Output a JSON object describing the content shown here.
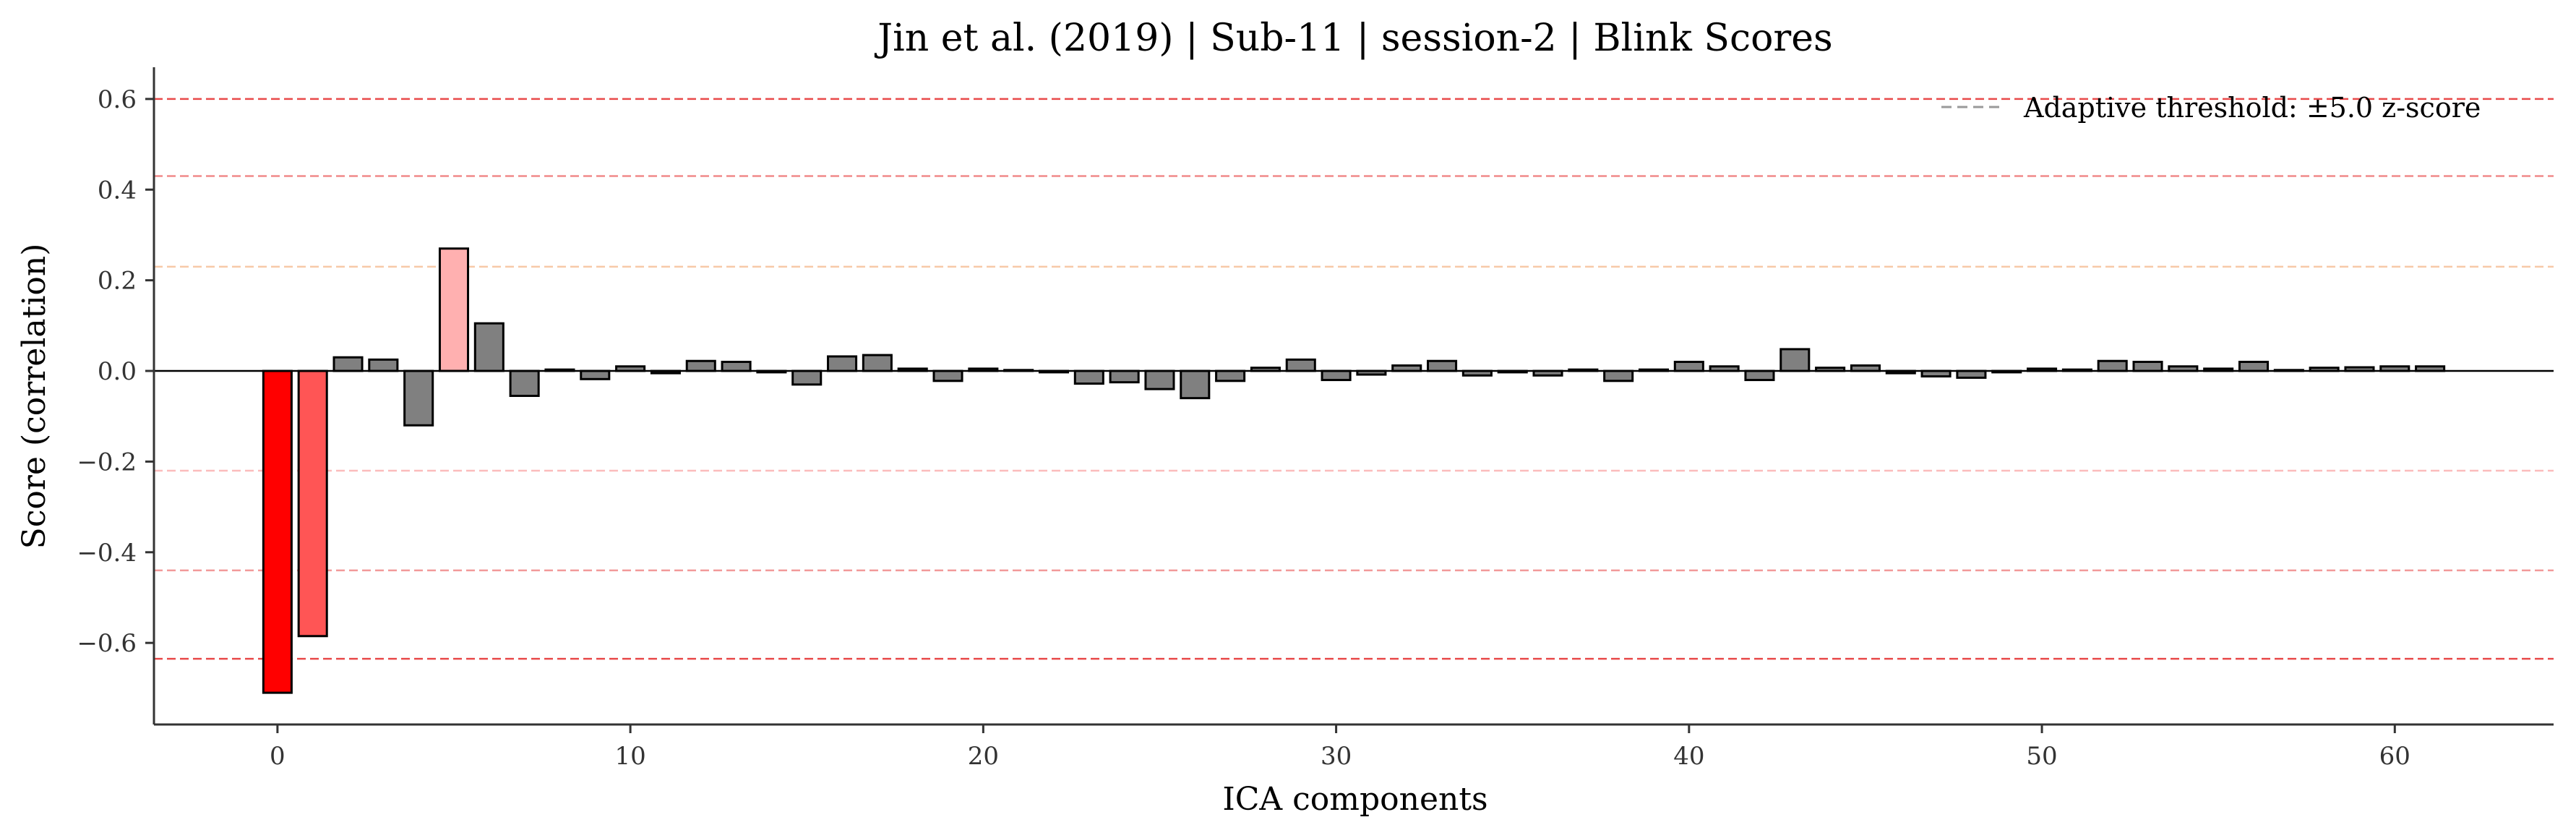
{
  "chart_data": {
    "type": "bar",
    "title": "Jin et al. (2019) | Sub-11 | session-2 | Blink Scores",
    "xlabel": "ICA components",
    "ylabel": "Score (correlation)",
    "xlim": [
      -3.5,
      64.5
    ],
    "ylim": [
      -0.78,
      0.67
    ],
    "xticks": [
      0,
      10,
      20,
      30,
      40,
      50,
      60
    ],
    "yticks": [
      -0.6,
      -0.4,
      -0.2,
      0.0,
      0.2,
      0.4,
      0.6
    ],
    "ytick_labels": [
      "−0.6",
      "−0.4",
      "−0.2",
      "0.0",
      "0.2",
      "0.4",
      "0.6"
    ],
    "xtick_labels": [
      "0",
      "10",
      "20",
      "30",
      "40",
      "50",
      "60"
    ],
    "x": [
      0,
      1,
      2,
      3,
      4,
      5,
      6,
      7,
      8,
      9,
      10,
      11,
      12,
      13,
      14,
      15,
      16,
      17,
      18,
      19,
      20,
      21,
      22,
      23,
      24,
      25,
      26,
      27,
      28,
      29,
      30,
      31,
      32,
      33,
      34,
      35,
      36,
      37,
      38,
      39,
      40,
      41,
      42,
      43,
      44,
      45,
      46,
      47,
      48,
      49,
      50,
      51,
      52,
      53,
      54,
      55,
      56,
      57,
      58,
      59,
      60,
      61
    ],
    "values": [
      -0.71,
      -0.585,
      0.03,
      0.025,
      -0.12,
      0.27,
      0.105,
      -0.055,
      0.003,
      -0.018,
      0.01,
      -0.005,
      0.022,
      0.02,
      -0.003,
      -0.03,
      0.032,
      0.035,
      0.005,
      -0.022,
      0.005,
      0.002,
      -0.003,
      -0.028,
      -0.025,
      -0.04,
      -0.06,
      -0.022,
      0.007,
      0.025,
      -0.02,
      -0.008,
      0.012,
      0.022,
      -0.01,
      -0.003,
      -0.01,
      0.003,
      -0.022,
      0.003,
      0.02,
      0.01,
      -0.02,
      0.048,
      0.007,
      0.012,
      -0.005,
      -0.012,
      -0.015,
      -0.003,
      0.005,
      0.003,
      0.022,
      0.02,
      0.01,
      0.005,
      0.02,
      0.002,
      0.007,
      0.008,
      0.01,
      0.01
    ],
    "bar_colors": {
      "0": "#ff0000",
      "1": "#ff5555",
      "5": "#ffb0b0",
      "default": "#808080"
    },
    "zero_line": true,
    "threshold_lines": [
      {
        "y": 0.6,
        "color": "#e84a4a"
      },
      {
        "y": 0.43,
        "color": "#f08a8a"
      },
      {
        "y": 0.23,
        "color": "#f7c9a8"
      },
      {
        "y": -0.22,
        "color": "#fbbcbc"
      },
      {
        "y": -0.44,
        "color": "#f29a9a"
      },
      {
        "y": -0.635,
        "color": "#e84a4a"
      }
    ],
    "legend": {
      "position": "top-right",
      "label": "Adaptive threshold: ±5.0 z-score",
      "line_color": "#999999"
    },
    "grid": false
  }
}
